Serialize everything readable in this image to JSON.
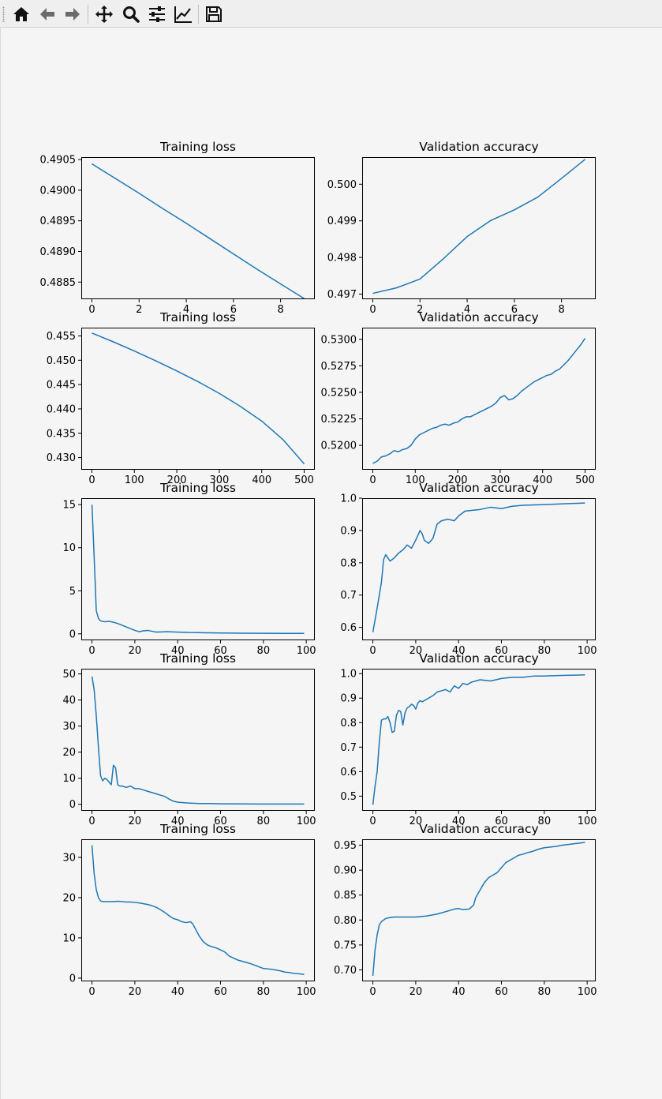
{
  "window": {
    "title": ""
  },
  "toolbar": {
    "buttons": [
      {
        "name": "home-button",
        "icon": "home-icon"
      },
      {
        "name": "back-button",
        "icon": "arrow-left-icon"
      },
      {
        "name": "forward-button",
        "icon": "arrow-right-icon"
      },
      {
        "name": "pan-button",
        "icon": "move-icon"
      },
      {
        "name": "zoom-button",
        "icon": "magnifier-icon"
      },
      {
        "name": "configure-subplots-button",
        "icon": "sliders-icon"
      },
      {
        "name": "edit-axis-button",
        "icon": "line-chart-icon"
      },
      {
        "name": "save-button",
        "icon": "floppy-disk-icon"
      }
    ]
  },
  "colors": {
    "line": "#1f77b4",
    "axes_bg": "#f5f5f5",
    "figure_bg": "#f5f5f5",
    "text": "#000000"
  },
  "chart_data": [
    {
      "type": "line",
      "title": "Training loss",
      "xlim": [
        -0.45,
        9.45
      ],
      "ylim": [
        0.48822,
        0.49054
      ],
      "xticks": [
        0,
        2,
        4,
        6,
        8
      ],
      "xtick_labels": [
        "0",
        "2",
        "4",
        "6",
        "8"
      ],
      "yticks": [
        0.4885,
        0.489,
        0.4895,
        0.49,
        0.4905
      ],
      "ytick_labels": [
        "0.4885",
        "0.4890",
        "0.4895",
        "0.4900",
        "0.4905"
      ],
      "series": [
        {
          "x": [
            0,
            1,
            2,
            3,
            4,
            5,
            6,
            7,
            8,
            9
          ],
          "y": [
            0.49043,
            0.49019,
            0.48995,
            0.4897,
            0.48946,
            0.48921,
            0.48896,
            0.48871,
            0.48847,
            0.48823
          ]
        }
      ]
    },
    {
      "type": "line",
      "title": "Validation accuracy",
      "xlim": [
        -0.45,
        9.45
      ],
      "ylim": [
        0.49686,
        0.50074
      ],
      "xticks": [
        0,
        2,
        4,
        6,
        8
      ],
      "xtick_labels": [
        "0",
        "2",
        "4",
        "6",
        "8"
      ],
      "yticks": [
        0.497,
        0.498,
        0.499,
        0.5
      ],
      "ytick_labels": [
        "0.497",
        "0.498",
        "0.499",
        "0.500"
      ],
      "series": [
        {
          "x": [
            0,
            1,
            2,
            3,
            4,
            5,
            6,
            7,
            8,
            9
          ],
          "y": [
            0.49702,
            0.49717,
            0.49741,
            0.49797,
            0.49857,
            0.49901,
            0.4993,
            0.49965,
            0.50016,
            0.50068
          ]
        }
      ]
    },
    {
      "type": "line",
      "title": "Training loss",
      "xlim": [
        -25,
        525
      ],
      "ylim": [
        0.4275,
        0.4567
      ],
      "xticks": [
        0,
        100,
        200,
        300,
        400,
        500
      ],
      "xtick_labels": [
        "0",
        "100",
        "200",
        "300",
        "400",
        "500"
      ],
      "yticks": [
        0.43,
        0.435,
        0.44,
        0.445,
        0.45,
        0.455
      ],
      "ytick_labels": [
        "0.430",
        "0.435",
        "0.440",
        "0.445",
        "0.450",
        "0.455"
      ],
      "series": [
        {
          "x": [
            0,
            50,
            100,
            150,
            200,
            250,
            300,
            350,
            400,
            450,
            500
          ],
          "y": [
            0.4556,
            0.4538,
            0.4519,
            0.4499,
            0.4478,
            0.4456,
            0.4432,
            0.4405,
            0.4375,
            0.4337,
            0.4287
          ]
        }
      ]
    },
    {
      "type": "line",
      "title": "Validation accuracy",
      "xlim": [
        -25,
        525
      ],
      "ylim": [
        0.5177,
        0.5311
      ],
      "xticks": [
        0,
        100,
        200,
        300,
        400,
        500
      ],
      "xtick_labels": [
        "0",
        "100",
        "200",
        "300",
        "400",
        "500"
      ],
      "yticks": [
        0.52,
        0.5225,
        0.525,
        0.5275,
        0.53
      ],
      "ytick_labels": [
        "0.5200",
        "0.5225",
        "0.5250",
        "0.5275",
        "0.5300"
      ],
      "series": [
        {
          "x": [
            0,
            10,
            20,
            30,
            40,
            50,
            60,
            70,
            80,
            90,
            100,
            110,
            120,
            130,
            140,
            150,
            160,
            170,
            180,
            190,
            200,
            210,
            220,
            230,
            240,
            250,
            260,
            270,
            280,
            290,
            300,
            310,
            320,
            330,
            340,
            350,
            360,
            370,
            380,
            390,
            400,
            410,
            420,
            430,
            440,
            450,
            460,
            470,
            480,
            490,
            500
          ],
          "y": [
            0.5183,
            0.5185,
            0.5189,
            0.519,
            0.5192,
            0.5195,
            0.5194,
            0.5196,
            0.5197,
            0.52,
            0.5206,
            0.521,
            0.5212,
            0.5214,
            0.5216,
            0.5217,
            0.5219,
            0.522,
            0.5219,
            0.5221,
            0.5222,
            0.5225,
            0.5227,
            0.5227,
            0.5229,
            0.5231,
            0.5233,
            0.5235,
            0.5237,
            0.524,
            0.5245,
            0.5247,
            0.5243,
            0.5244,
            0.5247,
            0.5251,
            0.5254,
            0.5257,
            0.526,
            0.5262,
            0.5264,
            0.5266,
            0.5267,
            0.527,
            0.5272,
            0.5276,
            0.528,
            0.5285,
            0.529,
            0.5295,
            0.5301
          ]
        }
      ]
    },
    {
      "type": "line",
      "title": "Training loss",
      "xlim": [
        -5,
        104
      ],
      "ylim": [
        -0.75,
        15.75
      ],
      "xticks": [
        0,
        20,
        40,
        60,
        80,
        100
      ],
      "xtick_labels": [
        "0",
        "20",
        "40",
        "60",
        "80",
        "100"
      ],
      "yticks": [
        0,
        5,
        10,
        15
      ],
      "ytick_labels": [
        "0",
        "5",
        "10",
        "15"
      ],
      "series": [
        {
          "x": [
            0,
            1,
            2,
            3,
            4,
            6,
            8,
            10,
            12,
            14,
            16,
            18,
            20,
            22,
            24,
            26,
            28,
            30,
            35,
            40,
            45,
            50,
            60,
            70,
            80,
            90,
            99
          ],
          "y": [
            15.0,
            9.0,
            2.7,
            1.8,
            1.5,
            1.4,
            1.45,
            1.35,
            1.2,
            1.0,
            0.8,
            0.6,
            0.4,
            0.25,
            0.35,
            0.4,
            0.3,
            0.2,
            0.25,
            0.2,
            0.15,
            0.14,
            0.1,
            0.08,
            0.06,
            0.05,
            0.05
          ]
        }
      ]
    },
    {
      "type": "line",
      "title": "Validation accuracy",
      "xlim": [
        -5,
        104
      ],
      "ylim": [
        0.56,
        1.0
      ],
      "xticks": [
        0,
        20,
        40,
        60,
        80,
        100
      ],
      "xtick_labels": [
        "0",
        "20",
        "40",
        "60",
        "80",
        "100"
      ],
      "yticks": [
        0.6,
        0.7,
        0.8,
        0.9,
        1.0
      ],
      "ytick_labels": [
        "0.6",
        "0.7",
        "0.8",
        "0.9",
        "1.0"
      ],
      "series": [
        {
          "x": [
            0,
            2,
            4,
            5,
            6,
            7,
            8,
            10,
            12,
            14,
            16,
            18,
            20,
            22,
            23,
            24,
            26,
            28,
            30,
            32,
            35,
            38,
            40,
            43,
            46,
            50,
            55,
            60,
            65,
            70,
            80,
            90,
            99
          ],
          "y": [
            0.585,
            0.66,
            0.74,
            0.81,
            0.825,
            0.815,
            0.805,
            0.815,
            0.83,
            0.84,
            0.855,
            0.845,
            0.87,
            0.9,
            0.89,
            0.87,
            0.86,
            0.875,
            0.92,
            0.93,
            0.935,
            0.93,
            0.945,
            0.96,
            0.962,
            0.965,
            0.972,
            0.968,
            0.975,
            0.978,
            0.98,
            0.983,
            0.985
          ]
        }
      ]
    },
    {
      "type": "line",
      "title": "Training loss",
      "xlim": [
        -5,
        104
      ],
      "ylim": [
        -2.5,
        52
      ],
      "xticks": [
        0,
        20,
        40,
        60,
        80,
        100
      ],
      "xtick_labels": [
        "0",
        "20",
        "40",
        "60",
        "80",
        "100"
      ],
      "yticks": [
        0,
        10,
        20,
        30,
        40,
        50
      ],
      "ytick_labels": [
        "0",
        "10",
        "20",
        "30",
        "40",
        "50"
      ],
      "series": [
        {
          "x": [
            0,
            1,
            2,
            3,
            4,
            5,
            6,
            7,
            8,
            9,
            10,
            11,
            12,
            13,
            14,
            16,
            18,
            20,
            22,
            24,
            26,
            28,
            30,
            32,
            34,
            36,
            38,
            40,
            45,
            50,
            55,
            60,
            70,
            80,
            90,
            99
          ],
          "y": [
            49.0,
            44.0,
            34.0,
            22.0,
            11.0,
            9.0,
            10.0,
            9.5,
            8.5,
            7.5,
            15.0,
            14.0,
            7.5,
            7.0,
            7.0,
            6.5,
            7.0,
            6.0,
            6.0,
            5.5,
            5.0,
            4.5,
            4.0,
            3.5,
            3.0,
            2.0,
            1.2,
            0.8,
            0.5,
            0.3,
            0.3,
            0.2,
            0.15,
            0.1,
            0.1,
            0.1
          ]
        }
      ]
    },
    {
      "type": "line",
      "title": "Validation accuracy",
      "xlim": [
        -5,
        104
      ],
      "ylim": [
        0.44,
        1.02
      ],
      "xticks": [
        0,
        20,
        40,
        60,
        80,
        100
      ],
      "xtick_labels": [
        "0",
        "20",
        "40",
        "60",
        "80",
        "100"
      ],
      "yticks": [
        0.5,
        0.6,
        0.7,
        0.8,
        0.9,
        1.0
      ],
      "ytick_labels": [
        "0.5",
        "0.6",
        "0.7",
        "0.8",
        "0.9",
        "1.0"
      ],
      "series": [
        {
          "x": [
            0,
            1,
            2,
            3,
            4,
            5,
            6,
            7,
            8,
            9,
            10,
            11,
            12,
            13,
            14,
            15,
            16,
            17,
            18,
            19,
            20,
            21,
            22,
            23,
            24,
            26,
            28,
            30,
            32,
            34,
            36,
            38,
            40,
            42,
            44,
            46,
            48,
            50,
            55,
            60,
            65,
            70,
            75,
            80,
            85,
            90,
            95,
            99
          ],
          "y": [
            0.465,
            0.54,
            0.6,
            0.72,
            0.81,
            0.815,
            0.815,
            0.825,
            0.8,
            0.76,
            0.765,
            0.83,
            0.85,
            0.845,
            0.79,
            0.84,
            0.86,
            0.865,
            0.875,
            0.87,
            0.855,
            0.88,
            0.89,
            0.885,
            0.89,
            0.9,
            0.91,
            0.925,
            0.93,
            0.935,
            0.925,
            0.95,
            0.94,
            0.96,
            0.955,
            0.965,
            0.97,
            0.975,
            0.97,
            0.98,
            0.985,
            0.985,
            0.99,
            0.99,
            0.992,
            0.993,
            0.994,
            0.995
          ]
        }
      ]
    },
    {
      "type": "line",
      "title": "Training loss",
      "xlim": [
        -5,
        104
      ],
      "ylim": [
        -0.8,
        34.5
      ],
      "xticks": [
        0,
        20,
        40,
        60,
        80,
        100
      ],
      "xtick_labels": [
        "0",
        "20",
        "40",
        "60",
        "80",
        "100"
      ],
      "yticks": [
        0,
        10,
        20,
        30
      ],
      "ytick_labels": [
        "0",
        "10",
        "20",
        "30"
      ],
      "series": [
        {
          "x": [
            0,
            1,
            2,
            3,
            4,
            5,
            6,
            8,
            10,
            12,
            14,
            16,
            18,
            20,
            22,
            24,
            26,
            28,
            30,
            32,
            34,
            36,
            38,
            40,
            42,
            44,
            46,
            47,
            48,
            50,
            52,
            54,
            56,
            58,
            60,
            62,
            64,
            66,
            68,
            70,
            72,
            74,
            76,
            78,
            80,
            82,
            84,
            86,
            88,
            90,
            92,
            94,
            96,
            98,
            99
          ],
          "y": [
            33.0,
            26.0,
            22.0,
            20.0,
            19.2,
            19.0,
            19.0,
            19.0,
            19.0,
            19.1,
            19.0,
            18.9,
            18.9,
            18.8,
            18.7,
            18.5,
            18.3,
            18.0,
            17.6,
            17.0,
            16.3,
            15.5,
            14.8,
            14.5,
            14.0,
            13.8,
            14.0,
            13.5,
            12.5,
            10.5,
            9.0,
            8.2,
            7.8,
            7.5,
            7.0,
            6.5,
            5.5,
            5.0,
            4.5,
            4.2,
            3.9,
            3.6,
            3.2,
            2.8,
            2.4,
            2.3,
            2.2,
            2.0,
            1.8,
            1.5,
            1.4,
            1.2,
            1.1,
            1.0,
            0.9
          ]
        }
      ]
    },
    {
      "type": "line",
      "title": "Validation accuracy",
      "xlim": [
        -5,
        104
      ],
      "ylim": [
        0.677,
        0.962
      ],
      "xticks": [
        0,
        20,
        40,
        60,
        80,
        100
      ],
      "xtick_labels": [
        "0",
        "20",
        "40",
        "60",
        "80",
        "100"
      ],
      "yticks": [
        0.7,
        0.75,
        0.8,
        0.85,
        0.9,
        0.95
      ],
      "ytick_labels": [
        "0.70",
        "0.75",
        "0.80",
        "0.85",
        "0.90",
        "0.95"
      ],
      "series": [
        {
          "x": [
            0,
            1,
            2,
            3,
            4,
            5,
            6,
            8,
            10,
            15,
            20,
            25,
            30,
            35,
            38,
            40,
            42,
            45,
            47,
            48,
            50,
            52,
            54,
            56,
            58,
            60,
            62,
            64,
            66,
            68,
            70,
            72,
            74,
            76,
            78,
            80,
            82,
            84,
            86,
            88,
            90,
            92,
            94,
            96,
            98,
            99
          ],
          "y": [
            0.688,
            0.74,
            0.77,
            0.79,
            0.797,
            0.8,
            0.803,
            0.805,
            0.806,
            0.806,
            0.806,
            0.808,
            0.812,
            0.818,
            0.822,
            0.823,
            0.821,
            0.822,
            0.83,
            0.845,
            0.86,
            0.875,
            0.885,
            0.89,
            0.895,
            0.905,
            0.915,
            0.92,
            0.925,
            0.93,
            0.932,
            0.935,
            0.937,
            0.94,
            0.943,
            0.945,
            0.946,
            0.947,
            0.948,
            0.95,
            0.951,
            0.952,
            0.953,
            0.954,
            0.955,
            0.956
          ]
        }
      ]
    }
  ]
}
